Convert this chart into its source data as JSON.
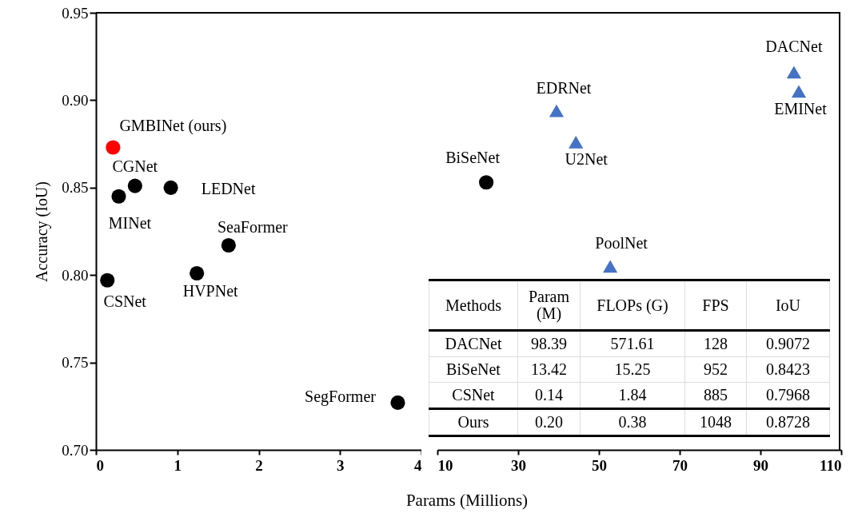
{
  "chart_data": [
    {
      "type": "scatter",
      "ylabel": "Accuracy (IoU)",
      "xlabel": "Params (Millions)",
      "marker": "circle",
      "xlim": [
        0,
        4
      ],
      "xticks": [
        0,
        1,
        2,
        3,
        4
      ],
      "ylim": [
        0.7,
        0.95
      ],
      "yticks": [
        {
          "value": 0.7,
          "label": "0.70"
        },
        0.75,
        {
          "value": 0.8,
          "label": "0.80"
        },
        0.85,
        {
          "value": 0.9,
          "label": "0.90"
        },
        0.95
      ],
      "series": [
        {
          "color": "#ff0000",
          "x": [
            0.21
          ],
          "values": [
            0.873
          ]
        },
        {
          "color": "#000000",
          "x": [
            0.48,
            0.28,
            0.92,
            1.63,
            1.24,
            0.14,
            3.71
          ],
          "values": [
            0.851,
            0.845,
            0.85,
            0.817,
            0.801,
            0.797,
            0.727
          ]
        }
      ],
      "annotations": [
        {
          "text": "GMBINet (ours)",
          "x": 0.21,
          "y": 0.873
        },
        {
          "text": "CGNet",
          "x": 0.48,
          "y": 0.851
        },
        {
          "text": "MINet",
          "x": 0.28,
          "y": 0.845
        },
        {
          "text": "LEDNet",
          "x": 0.92,
          "y": 0.85
        },
        {
          "text": "SeaFormer",
          "x": 1.63,
          "y": 0.817
        },
        {
          "text": "HVPNet",
          "x": 1.24,
          "y": 0.801
        },
        {
          "text": "CSNet",
          "x": 0.14,
          "y": 0.797
        },
        {
          "text": "SegFormer",
          "x": 3.71,
          "y": 0.727
        }
      ]
    },
    {
      "type": "scatter",
      "tick_labels": "x",
      "marker": "circle",
      "xlim": [
        10,
        110
      ],
      "xticks": [
        10,
        30,
        50,
        70,
        90,
        110
      ],
      "ylim": [
        0.7,
        0.95
      ],
      "yticks": [
        0.7,
        0.75,
        0.8,
        0.85,
        0.9,
        0.95
      ],
      "series": [
        {
          "color": "#000000",
          "x": [
            22.1
          ],
          "values": [
            0.853
          ]
        },
        {
          "color": "#4472c4",
          "marker": "triangle",
          "x": [
            39.5,
            44.3,
            52.8,
            98.3,
            99.5
          ],
          "values": [
            0.894,
            0.876,
            0.805,
            0.916,
            0.905
          ]
        }
      ],
      "annotations": [
        {
          "text": "BiSeNet",
          "x": 22.1,
          "y": 0.853
        },
        {
          "text": "EDRNet",
          "x": 39.5,
          "y": 0.894
        },
        {
          "text": "U2Net",
          "x": 44.3,
          "y": 0.876
        },
        {
          "text": "PoolNet",
          "x": 52.8,
          "y": 0.805
        },
        {
          "text": "DACNet",
          "x": 98.3,
          "y": 0.916
        },
        {
          "text": "EMINet",
          "x": 99.5,
          "y": 0.905
        }
      ]
    },
    {
      "type": "other",
      "categories": [
        "Methods",
        "Param (M)",
        "FLOPs (G)",
        "FPS",
        "IoU"
      ],
      "y_categories": [
        "DACNet",
        "BiSeNet",
        "CSNet",
        "Ours"
      ],
      "cell_labels": [
        [
          "98.39",
          "571.61",
          "128",
          "0.9072"
        ],
        [
          "13.42",
          "15.25",
          "952",
          "0.8423"
        ],
        [
          "0.14",
          "1.84",
          "885",
          "0.7968"
        ],
        [
          "0.20",
          "0.38",
          "1048",
          "0.8728"
        ]
      ]
    }
  ]
}
